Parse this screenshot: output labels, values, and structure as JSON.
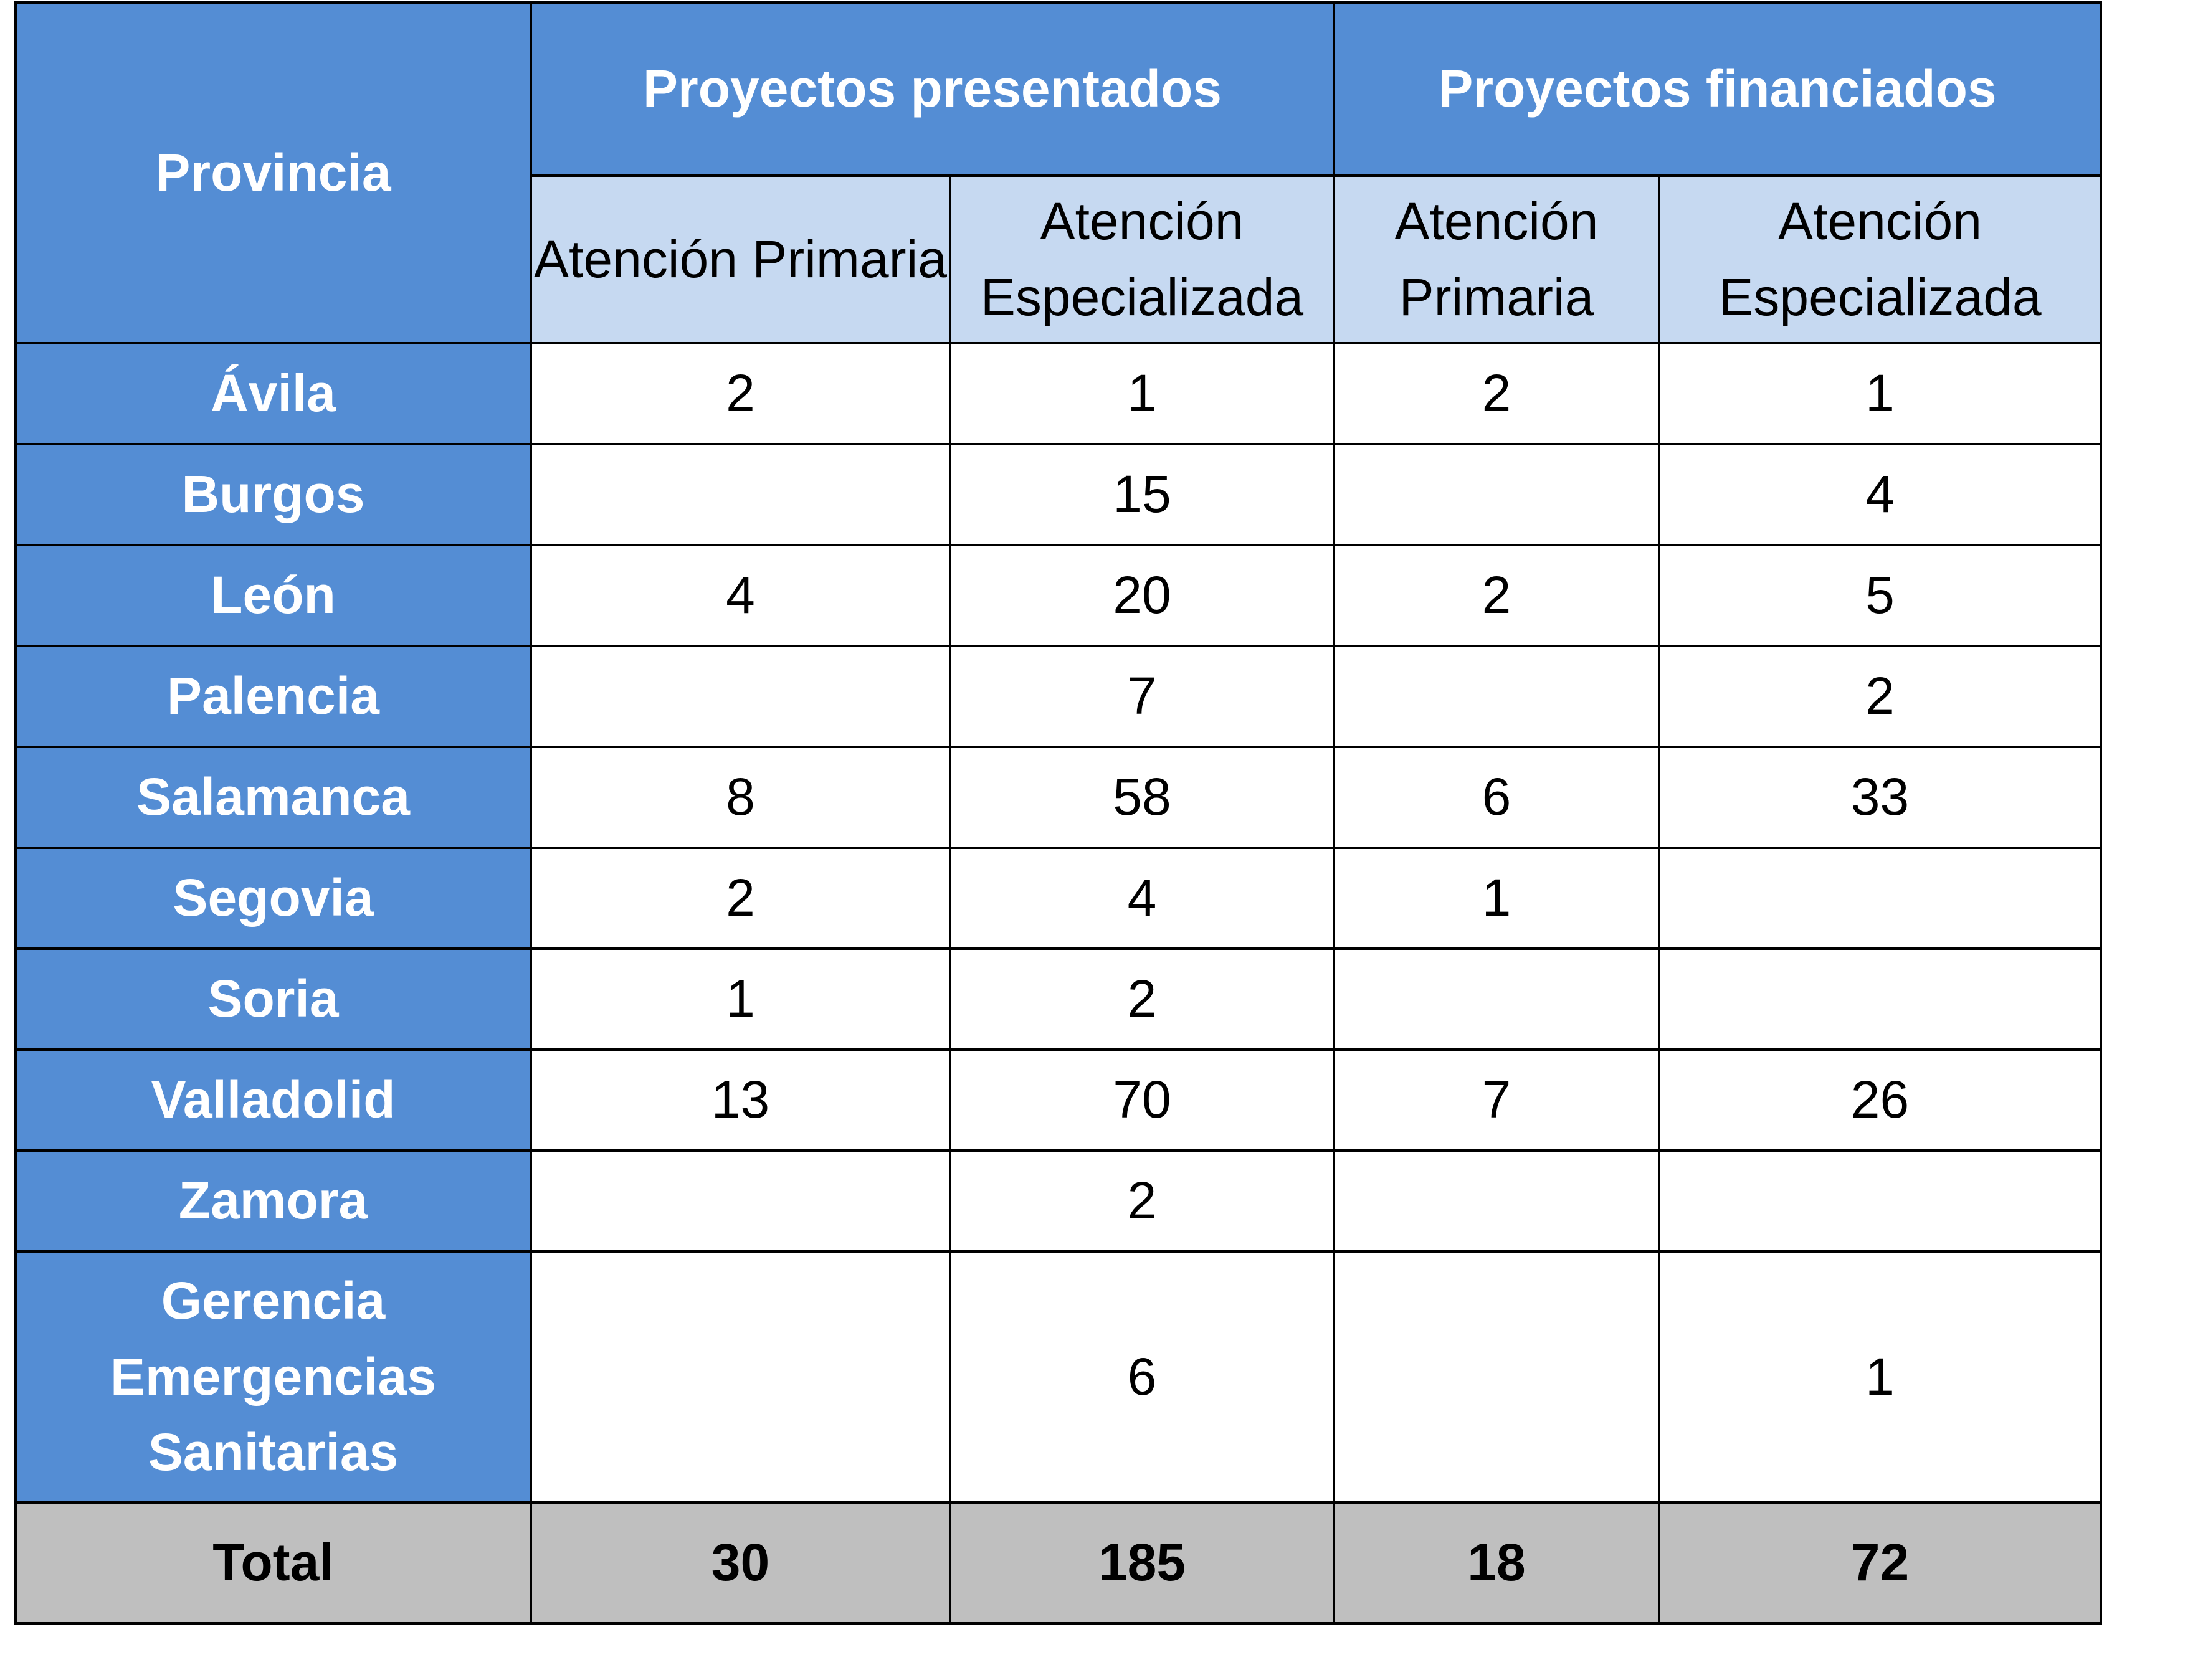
{
  "header": {
    "provincia": "Provincia",
    "group_presentados": "Proyectos presentados",
    "group_financiados": "Proyectos financiados",
    "sub_primaria": "Atención Primaria",
    "sub_especializada": "Atención Especializada"
  },
  "rows": [
    {
      "provincia": "Ávila",
      "p_ap": "2",
      "p_ae": "1",
      "f_ap": "2",
      "f_ae": "1"
    },
    {
      "provincia": "Burgos",
      "p_ap": "",
      "p_ae": "15",
      "f_ap": "",
      "f_ae": "4"
    },
    {
      "provincia": "León",
      "p_ap": "4",
      "p_ae": "20",
      "f_ap": "2",
      "f_ae": "5"
    },
    {
      "provincia": "Palencia",
      "p_ap": "",
      "p_ae": "7",
      "f_ap": "",
      "f_ae": "2"
    },
    {
      "provincia": "Salamanca",
      "p_ap": "8",
      "p_ae": "58",
      "f_ap": "6",
      "f_ae": "33"
    },
    {
      "provincia": "Segovia",
      "p_ap": "2",
      "p_ae": "4",
      "f_ap": "1",
      "f_ae": ""
    },
    {
      "provincia": "Soria",
      "p_ap": "1",
      "p_ae": "2",
      "f_ap": "",
      "f_ae": ""
    },
    {
      "provincia": "Valladolid",
      "p_ap": "13",
      "p_ae": "70",
      "f_ap": "7",
      "f_ae": "26"
    },
    {
      "provincia": "Zamora",
      "p_ap": "",
      "p_ae": "2",
      "f_ap": "",
      "f_ae": ""
    },
    {
      "provincia": "Gerencia Emergencias Sanitarias",
      "p_ap": "",
      "p_ae": "6",
      "f_ap": "",
      "f_ae": "1"
    }
  ],
  "total": {
    "label": "Total",
    "p_ap": "30",
    "p_ae": "185",
    "f_ap": "18",
    "f_ae": "72"
  }
}
